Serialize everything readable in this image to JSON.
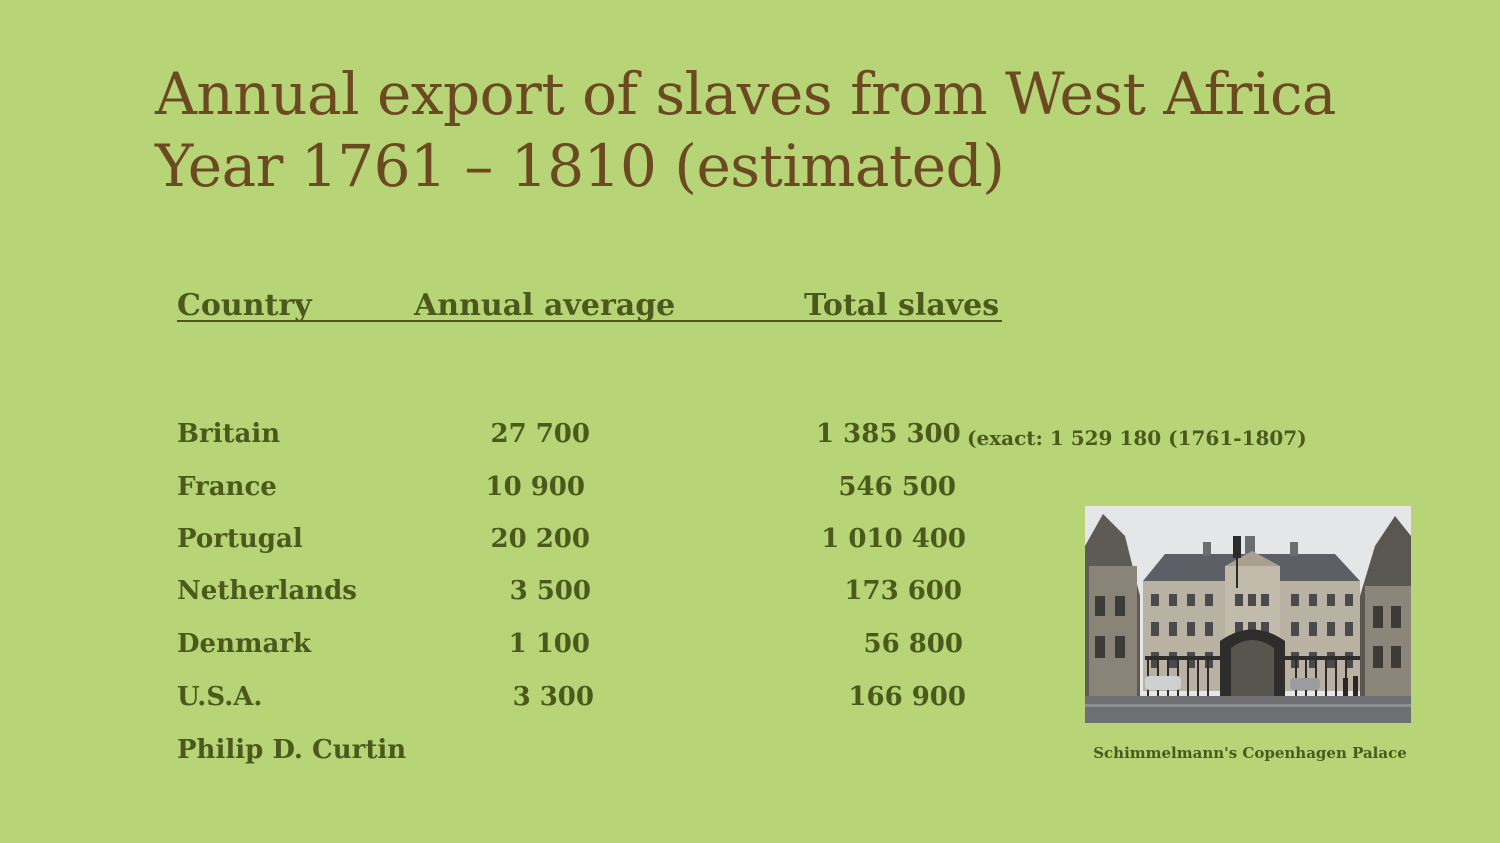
{
  "title": {
    "line1": "Annual export of slaves from West Africa",
    "line2": "Year 1761 – 1810 (estimated)"
  },
  "table": {
    "headers": {
      "country": "Country",
      "annual": "Annual average",
      "total": "Total slaves"
    },
    "rows": [
      {
        "country": "Britain",
        "annual": "27 700",
        "total": "1 385 300",
        "note": "(exact: 1 529 180 (1761-1807)"
      },
      {
        "country": "France",
        "annual": "10 900",
        "total": "546 500"
      },
      {
        "country": "Portugal",
        "annual": "20 200",
        "total": "1 010 400"
      },
      {
        "country": "Netherlands",
        "annual": "3 500",
        "total": "173 600"
      },
      {
        "country": "Denmark",
        "annual": "1 100",
        "total": "56 800"
      },
      {
        "country": "U.S.A.",
        "annual": "3 300",
        "total": "166 900"
      }
    ]
  },
  "source": "Philip D. Curtin",
  "photo": {
    "caption": "Schimmelmann's Copenhagen Palace"
  },
  "colors": {
    "background": "#b7d577",
    "title": "#6b4a22",
    "text": "#4b5a1c"
  }
}
